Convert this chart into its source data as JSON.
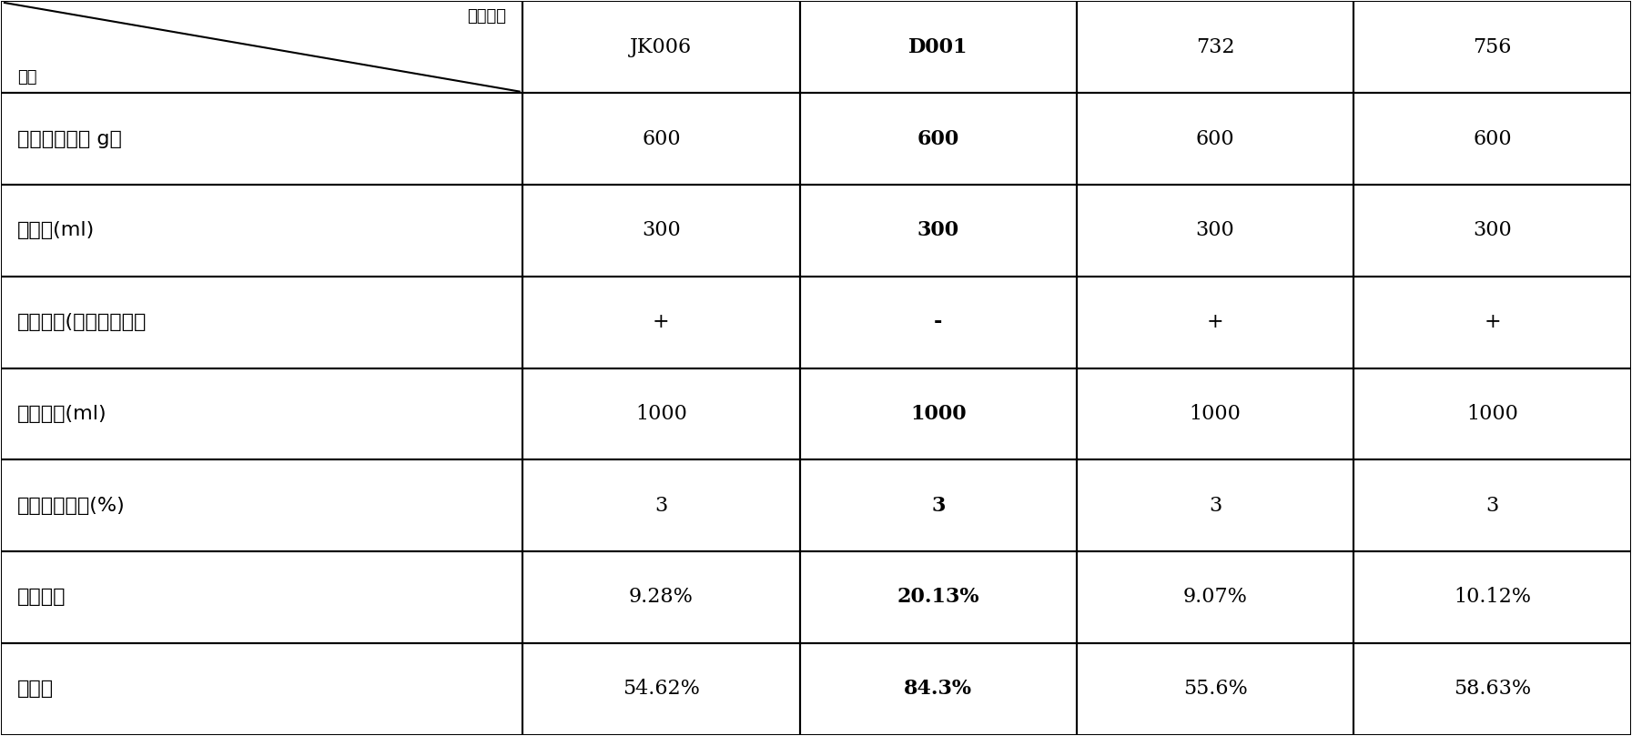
{
  "header_row": [
    "JK006",
    "D001",
    "732",
    "756"
  ],
  "header_col1": "项目",
  "header_col2": "树脂类型",
  "rows": [
    [
      "上样量（原料 g）",
      "600",
      "600",
      "600",
      "600"
    ],
    [
      "树脂量(ml)",
      "300",
      "300",
      "300",
      "300"
    ],
    [
      "饱和程度(茚三酮显色）",
      "+",
      "-",
      "+",
      "+"
    ],
    [
      "洗脱体积(ml)",
      "1000",
      "1000",
      "1000",
      "1000"
    ],
    [
      "洗脱氨水浓度(%)",
      "3",
      "3",
      "3",
      "3"
    ],
    [
      "浸膏含量",
      "9.28%",
      "20.13%",
      "9.07%",
      "10.12%"
    ],
    [
      "转化率",
      "54.62%",
      "84.3%",
      "55.6%",
      "58.63%"
    ]
  ],
  "bold_col": 1,
  "background_color": "#ffffff",
  "line_color": "#000000",
  "text_color": "#000000",
  "font_size": 16,
  "header_font_size": 15
}
